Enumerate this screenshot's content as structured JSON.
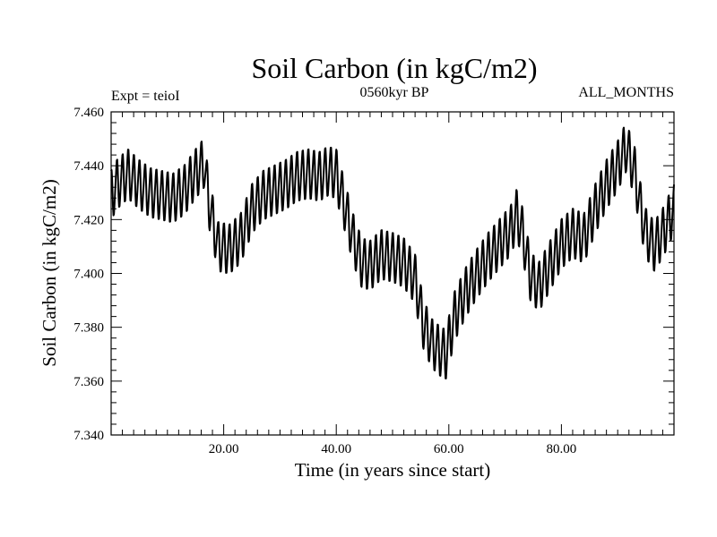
{
  "chart_data": {
    "type": "line",
    "title": "Soil Carbon (in kgC/m2)",
    "subtitle": "0560kyr BP",
    "left_label": "Expt = teioI",
    "right_label": "ALL_MONTHS",
    "xlabel": "Time (in years since start)",
    "ylabel": "Soil Carbon (in kgC/m2)",
    "xlim": [
      0,
      100
    ],
    "ylim": [
      7.34,
      7.46
    ],
    "x_ticks": [
      20,
      40,
      60,
      80
    ],
    "x_tick_labels": [
      "20.00",
      "40.00",
      "60.00",
      "80.00"
    ],
    "y_ticks": [
      7.34,
      7.36,
      7.38,
      7.4,
      7.42,
      7.44,
      7.46
    ],
    "y_tick_labels": [
      "7.340",
      "7.360",
      "7.380",
      "7.400",
      "7.420",
      "7.440",
      "7.460"
    ],
    "grid": false,
    "series": [
      {
        "name": "Soil Carbon",
        "seasonal_amplitude": 0.009,
        "cycle_length_years": 1,
        "annual_baseline": {
          "x": [
            0,
            1,
            3,
            5,
            7,
            9,
            11,
            13,
            15,
            16.5,
            17.5,
            19,
            21,
            23,
            25,
            27,
            29,
            31,
            33,
            35,
            37,
            38.5,
            40,
            41.5,
            43,
            44.5,
            46,
            48,
            50,
            52,
            54,
            55.5,
            57,
            58.5,
            59.5,
            61,
            63,
            65,
            67,
            69,
            71,
            72,
            73,
            74.5,
            76,
            78,
            80,
            82,
            84,
            86,
            88,
            90,
            91.5,
            93,
            94,
            95,
            96.5,
            98,
            100
          ],
          "y": [
            7.429,
            7.433,
            7.437,
            7.433,
            7.43,
            7.429,
            7.428,
            7.431,
            7.437,
            7.441,
            7.425,
            7.41,
            7.409,
            7.413,
            7.424,
            7.429,
            7.431,
            7.433,
            7.436,
            7.437,
            7.436,
            7.438,
            7.437,
            7.425,
            7.413,
            7.404,
            7.403,
            7.407,
            7.406,
            7.404,
            7.398,
            7.381,
            7.374,
            7.371,
            7.37,
            7.384,
            7.393,
            7.4,
            7.406,
            7.411,
            7.416,
            7.422,
            7.416,
            7.399,
            7.395,
            7.403,
            7.411,
            7.415,
            7.413,
            7.424,
            7.433,
            7.44,
            7.447,
            7.438,
            7.425,
            7.415,
            7.41,
            7.415,
            7.424
          ]
        }
      }
    ]
  }
}
